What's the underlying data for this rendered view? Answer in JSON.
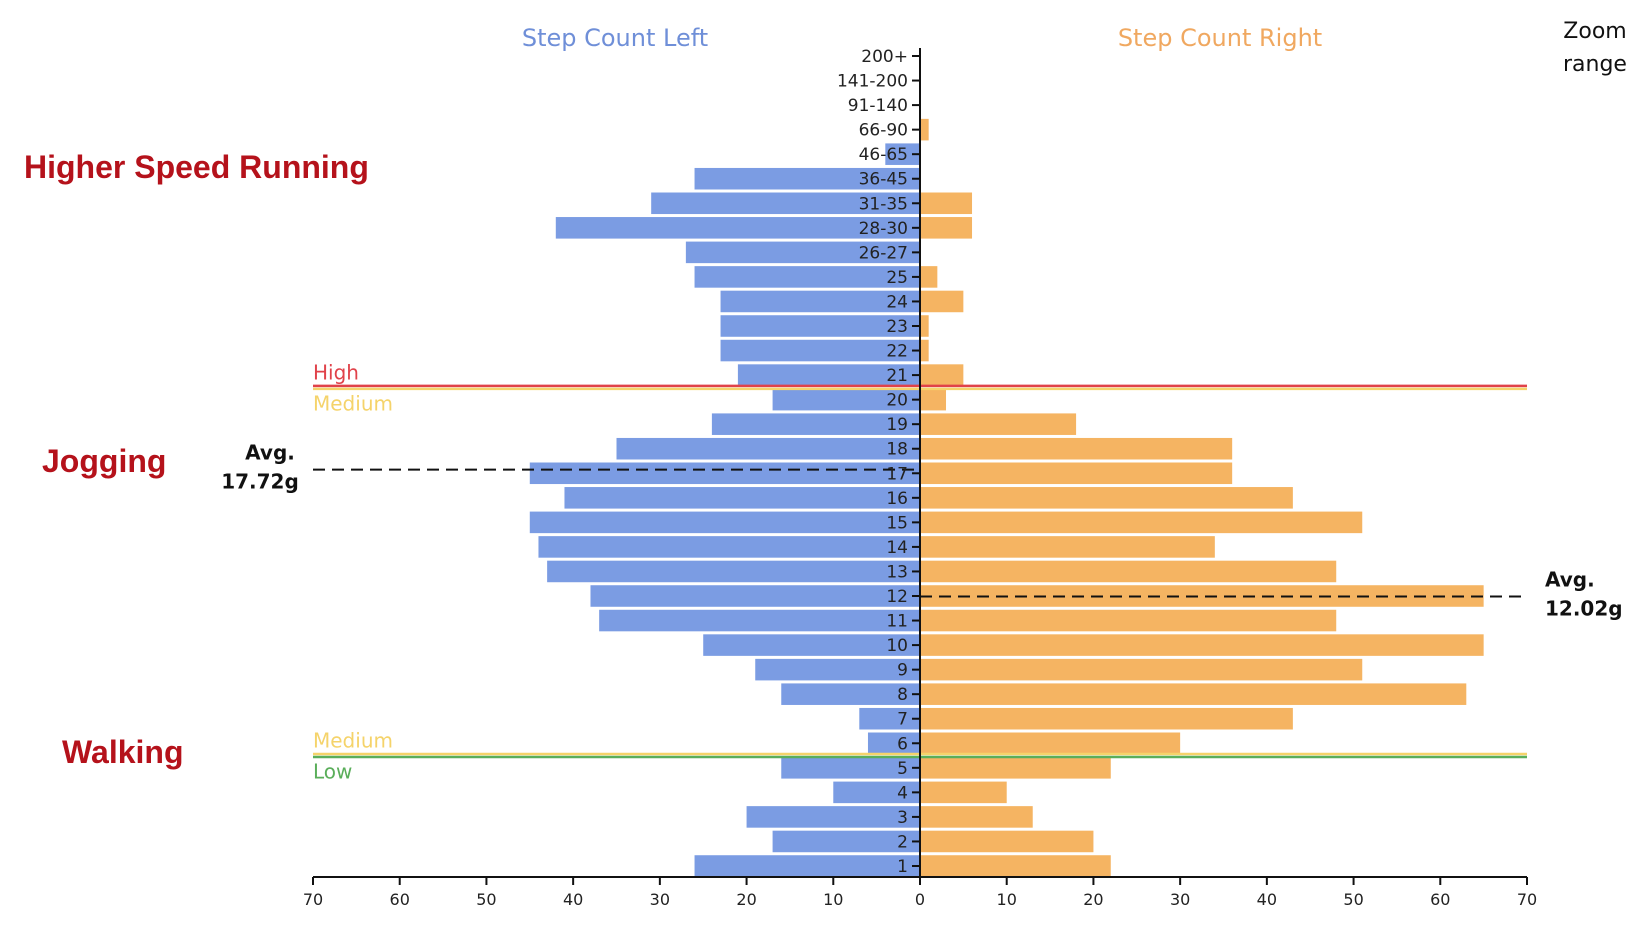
{
  "chart_data": {
    "type": "bar",
    "orientation": "horizontal-butterfly",
    "categories": [
      "1",
      "2",
      "3",
      "4",
      "5",
      "6",
      "7",
      "8",
      "9",
      "10",
      "11",
      "12",
      "13",
      "14",
      "15",
      "16",
      "17",
      "18",
      "19",
      "20",
      "21",
      "22",
      "23",
      "24",
      "25",
      "26-27",
      "28-30",
      "31-35",
      "36-45",
      "46-65",
      "66-90",
      "91-140",
      "141-200",
      "200+"
    ],
    "series": [
      {
        "name": "Step Count Left",
        "color": "#7b9ce3",
        "values": [
          26,
          17,
          20,
          10,
          16,
          6,
          7,
          16,
          19,
          25,
          37,
          38,
          43,
          44,
          45,
          41,
          45,
          35,
          24,
          17,
          21,
          23,
          23,
          23,
          26,
          27,
          42,
          31,
          26,
          4,
          0,
          0,
          0,
          0
        ]
      },
      {
        "name": "Step Count Right",
        "color": "#f5b462",
        "values": [
          22,
          20,
          13,
          10,
          22,
          30,
          43,
          63,
          51,
          65,
          48,
          65,
          48,
          34,
          51,
          43,
          36,
          36,
          18,
          3,
          5,
          1,
          1,
          5,
          2,
          0,
          6,
          6,
          0,
          0,
          1,
          0,
          0,
          0
        ]
      }
    ],
    "xlim": [
      0,
      70
    ],
    "x_ticks": [
      "70",
      "60",
      "50",
      "40",
      "30",
      "20",
      "10",
      "0",
      "10",
      "20",
      "30",
      "40",
      "50",
      "60",
      "70"
    ],
    "thresholds": [
      {
        "label": "High",
        "color": "#e0424a",
        "between": [
          "20",
          "21"
        ]
      },
      {
        "label": "Medium",
        "color": "#f5d36a",
        "between": [
          "20",
          "21"
        ]
      },
      {
        "label": "Medium",
        "color": "#f5d36a",
        "between": [
          "5",
          "6"
        ]
      },
      {
        "label": "Low",
        "color": "#5aae5a",
        "between": [
          "5",
          "6"
        ]
      }
    ],
    "averages": [
      {
        "side": "left",
        "label": "Avg.",
        "value": "17.72g"
      },
      {
        "side": "right",
        "label": "Avg.",
        "value": "12.02g"
      }
    ],
    "zones": [
      "Higher Speed Running",
      "Jogging",
      "Walking"
    ],
    "zoom_label": [
      "Zoom",
      "range"
    ]
  }
}
